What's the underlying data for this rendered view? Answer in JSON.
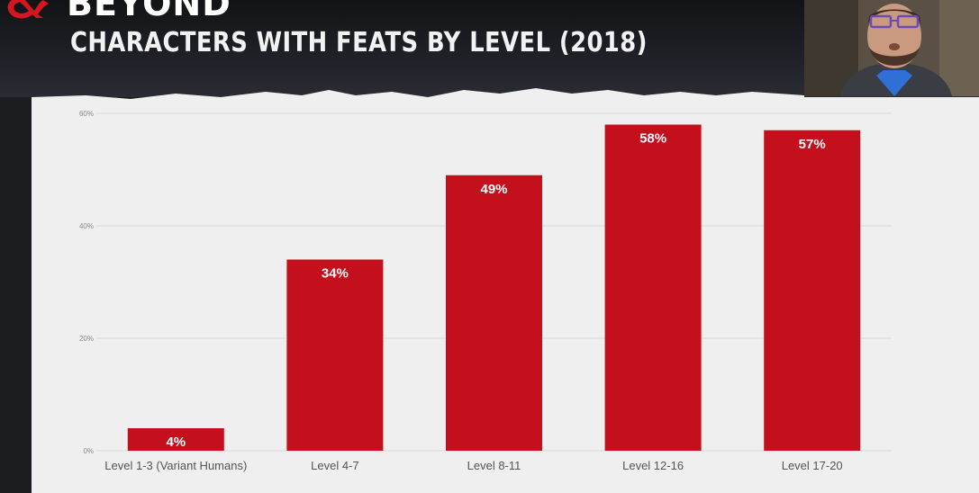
{
  "header": {
    "logo_text": "BEYOND",
    "slide_title": "CHARACTERS WITH FEATS BY LEVEL (2018)"
  },
  "webcam": {
    "content": "presenter-video-feed"
  },
  "colors": {
    "bar": "#c3101c",
    "bar_label": "#ffffff",
    "panel_bg": "#efefef",
    "grid": "#d8d8d8",
    "axis_text": "#8a8a8a",
    "category_text": "#555555",
    "title_text": "#f2f2f2"
  },
  "chart_data": {
    "type": "bar",
    "title": "",
    "xlabel": "",
    "ylabel": "",
    "categories": [
      "Level 1-3 (Variant Humans)",
      "Level 4-7",
      "Level 8-11",
      "Level 12-16",
      "Level 17-20"
    ],
    "values": [
      4,
      34,
      49,
      58,
      57
    ],
    "data_labels": [
      "4%",
      "34%",
      "49%",
      "58%",
      "57%"
    ],
    "ylim": [
      0,
      60
    ],
    "yticks": [
      0,
      20,
      40,
      60
    ],
    "ytick_labels": [
      "0%",
      "20%",
      "40%",
      "60%"
    ],
    "grid": true,
    "legend": "none"
  }
}
